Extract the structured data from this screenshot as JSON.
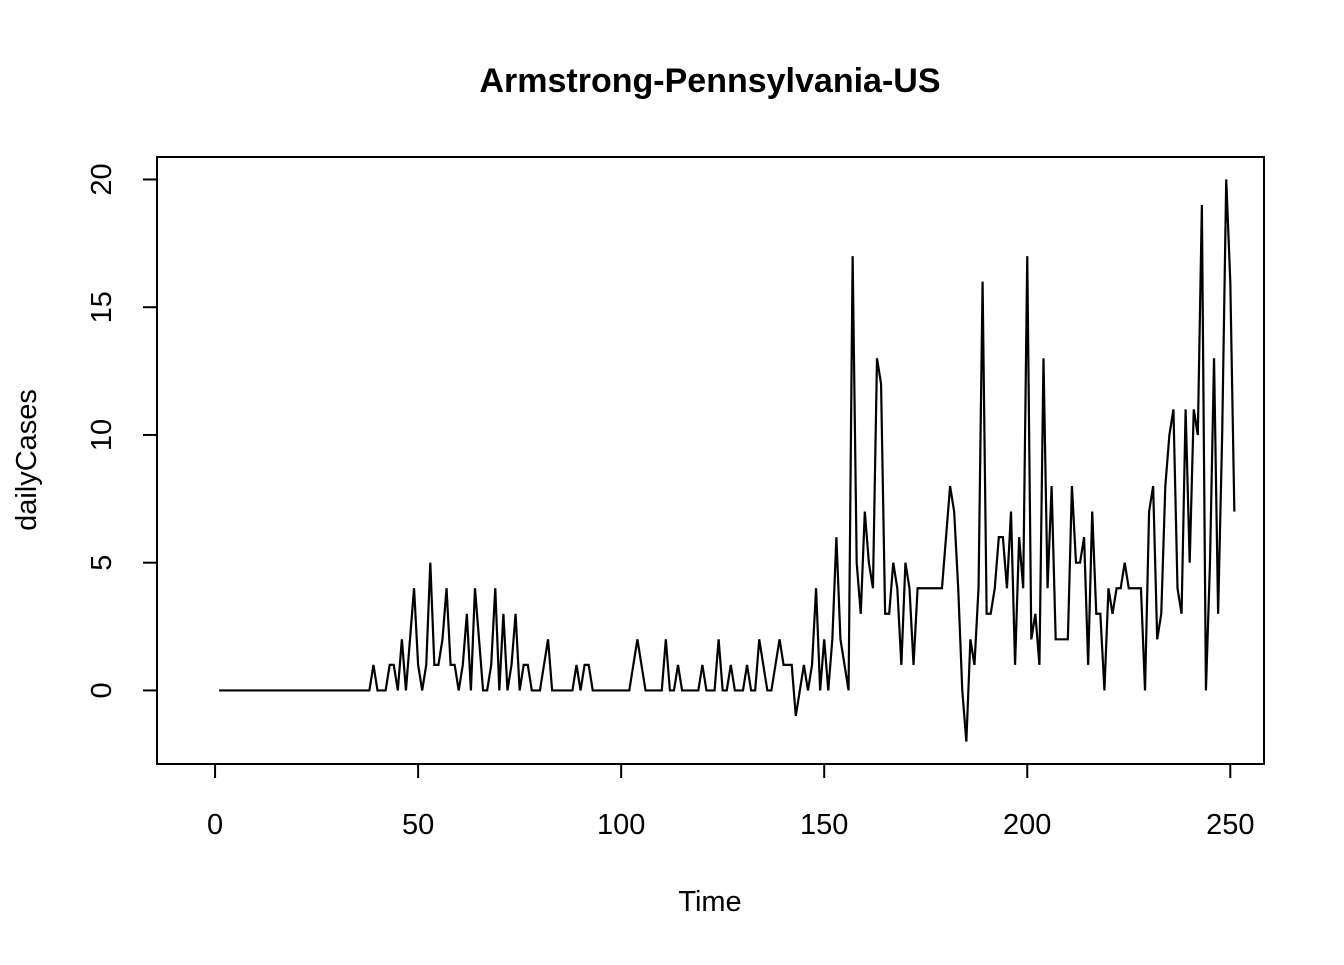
{
  "chart_data": {
    "type": "line",
    "title": "Armstrong-Pennsylvania-US",
    "xlabel": "Time",
    "ylabel": "dailyCases",
    "xlim": [
      -14.3,
      258.3
    ],
    "ylim": [
      -2.88,
      20.88
    ],
    "xticks": [
      0,
      50,
      100,
      150,
      200,
      250
    ],
    "yticks": [
      0,
      5,
      10,
      15,
      20
    ],
    "grid": false,
    "legend": "none",
    "colors": {
      "line": "#000000",
      "axes": "#000000",
      "background": "#ffffff"
    },
    "series": [
      {
        "x_start": 1,
        "values": [
          0,
          0,
          0,
          0,
          0,
          0,
          0,
          0,
          0,
          0,
          0,
          0,
          0,
          0,
          0,
          0,
          0,
          0,
          0,
          0,
          0,
          0,
          0,
          0,
          0,
          0,
          0,
          0,
          0,
          0,
          0,
          0,
          0,
          0,
          0,
          0,
          0,
          0,
          1,
          0,
          0,
          0,
          1,
          1,
          0,
          2,
          0,
          2,
          4,
          1,
          0,
          1,
          5,
          1,
          1,
          2,
          4,
          1,
          1,
          0,
          1,
          3,
          0,
          4,
          2,
          0,
          0,
          1,
          4,
          0,
          3,
          0,
          1,
          3,
          0,
          1,
          1,
          0,
          0,
          0,
          1,
          2,
          0,
          0,
          0,
          0,
          0,
          0,
          1,
          0,
          1,
          1,
          0,
          0,
          0,
          0,
          0,
          0,
          0,
          0,
          0,
          0,
          1,
          2,
          1,
          0,
          0,
          0,
          0,
          0,
          2,
          0,
          0,
          1,
          0,
          0,
          0,
          0,
          0,
          1,
          0,
          0,
          0,
          2,
          0,
          0,
          1,
          0,
          0,
          0,
          1,
          0,
          0,
          2,
          1,
          0,
          0,
          1,
          2,
          1,
          1,
          1,
          -1,
          0,
          1,
          0,
          1,
          4,
          0,
          2,
          0,
          2,
          6,
          2,
          1,
          0,
          17,
          5,
          3,
          7,
          5,
          4,
          13,
          12,
          3,
          3,
          5,
          4,
          1,
          5,
          4,
          1,
          4,
          4,
          4,
          4,
          4,
          4,
          4,
          6,
          8,
          7,
          4,
          0,
          -2,
          2,
          1,
          4,
          16,
          3,
          3,
          4,
          6,
          6,
          4,
          7,
          1,
          6,
          4,
          17,
          2,
          3,
          1,
          13,
          4,
          8,
          2,
          2,
          2,
          2,
          8,
          5,
          5,
          6,
          1,
          7,
          3,
          3,
          0,
          4,
          3,
          4,
          4,
          5,
          4,
          4,
          4,
          4,
          0,
          7,
          8,
          2,
          3,
          8,
          10,
          11,
          4,
          3,
          11,
          5,
          11,
          10,
          19,
          0,
          5,
          13,
          3,
          10,
          20,
          16,
          7
        ]
      }
    ]
  }
}
